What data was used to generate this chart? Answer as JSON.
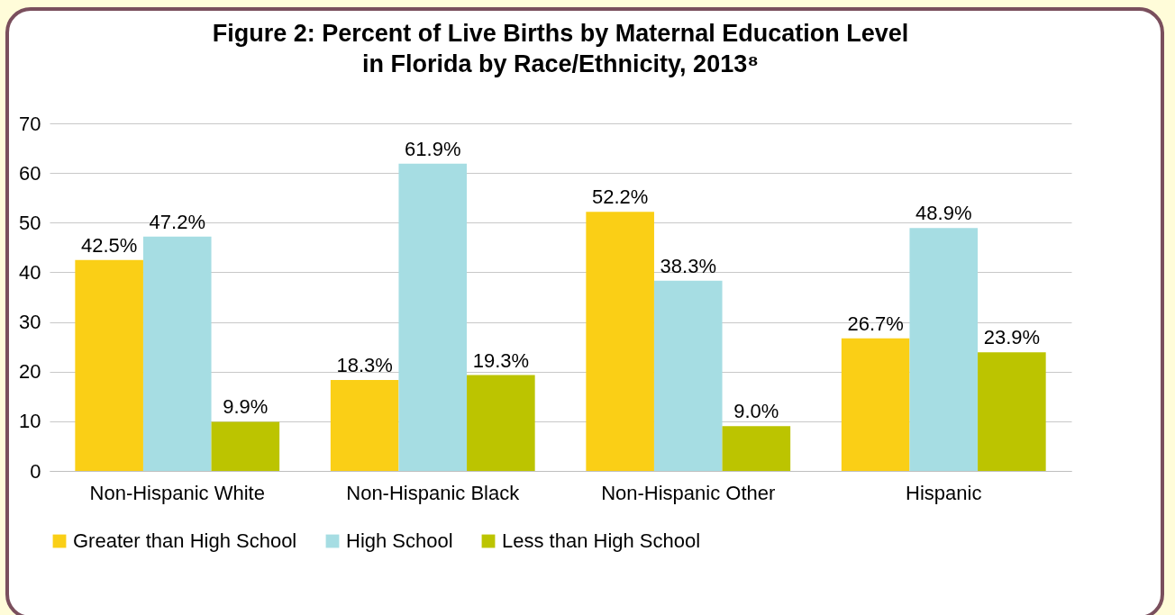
{
  "chart_data": {
    "type": "bar",
    "title": "Figure 2: Percent of Live Births by Maternal Education Level in Florida by Race/Ethnicity, 2013⁸",
    "categories": [
      "Non-Hispanic White",
      "Non-Hispanic Black",
      "Non-Hispanic Other",
      "Hispanic"
    ],
    "series": [
      {
        "name": "Greater than High School",
        "color": "#facf16",
        "values": [
          42.5,
          18.3,
          52.2,
          26.7
        ],
        "value_labels": [
          "42.5%",
          "18.3%",
          "52.2%",
          "26.7%"
        ]
      },
      {
        "name": "High School",
        "color": "#a6dde3",
        "values": [
          47.2,
          61.9,
          38.3,
          48.9
        ],
        "value_labels": [
          "47.2%",
          "61.9%",
          "38.3%",
          "48.9%"
        ]
      },
      {
        "name": "Less than High School",
        "color": "#bcc400",
        "values": [
          9.9,
          19.3,
          9.0,
          23.9
        ],
        "value_labels": [
          "9.9%",
          "19.3%",
          "9.0%",
          "23.9%"
        ]
      }
    ],
    "ylim": [
      0,
      70
    ],
    "yticks": [
      0,
      10,
      20,
      30,
      40,
      50,
      60,
      70
    ],
    "grid": "y",
    "legend": "bottom"
  }
}
